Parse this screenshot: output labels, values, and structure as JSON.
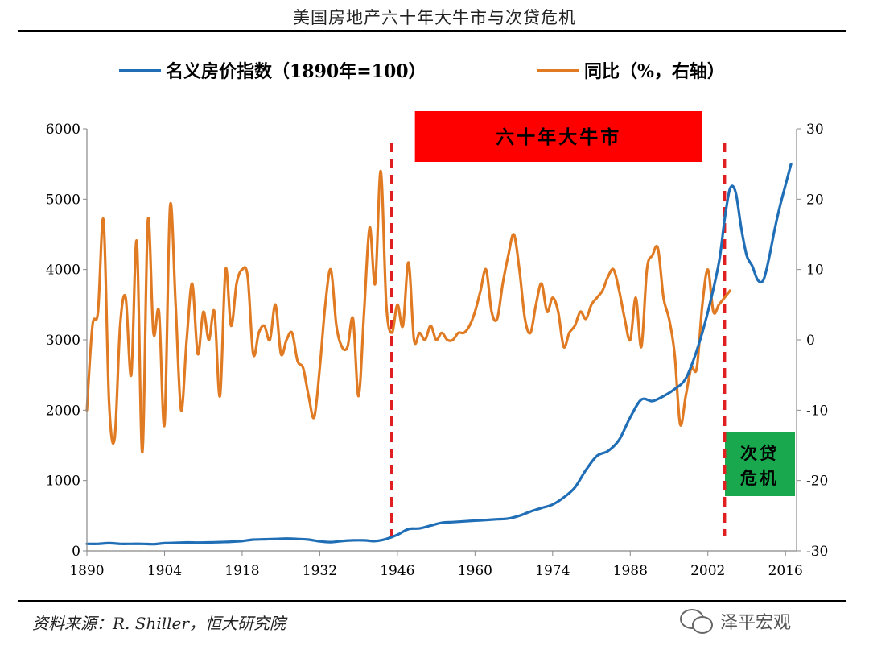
{
  "page": {
    "title": "美国房地产六十年大牛市与次贷危机",
    "source": "资料来源：R. Shiller，恒大研究院",
    "watermark": "泽平宏观"
  },
  "colors": {
    "index_line": "#1f6eb6",
    "yoy_line": "#e07b24",
    "bull_box": "#ff0000",
    "bull_text": "#000000",
    "crisis_box": "#1aa84f",
    "marker_line": "#e02020"
  },
  "chart_data": {
    "type": "line",
    "title": "美国房地产六十年大牛市与次贷危机",
    "x_ticks": [
      1890,
      1904,
      1918,
      1932,
      1946,
      1960,
      1974,
      1988,
      2002,
      2016
    ],
    "x_range": [
      1890,
      2018
    ],
    "y_left": {
      "min": 0,
      "max": 6000,
      "ticks": [
        0,
        1000,
        2000,
        3000,
        4000,
        5000,
        6000
      ]
    },
    "y_right": {
      "min": -30,
      "max": 30,
      "ticks": [
        -30,
        -20,
        -10,
        0,
        10,
        20,
        30
      ]
    },
    "series": [
      {
        "name": "名义房价指数（1890年=100）",
        "axis": "left",
        "points": [
          [
            1890,
            100
          ],
          [
            1892,
            100
          ],
          [
            1894,
            110
          ],
          [
            1896,
            100
          ],
          [
            1898,
            100
          ],
          [
            1900,
            100
          ],
          [
            1902,
            95
          ],
          [
            1904,
            110
          ],
          [
            1906,
            115
          ],
          [
            1908,
            120
          ],
          [
            1910,
            118
          ],
          [
            1912,
            120
          ],
          [
            1914,
            125
          ],
          [
            1916,
            130
          ],
          [
            1918,
            140
          ],
          [
            1920,
            160
          ],
          [
            1922,
            165
          ],
          [
            1924,
            170
          ],
          [
            1926,
            175
          ],
          [
            1928,
            170
          ],
          [
            1930,
            160
          ],
          [
            1932,
            135
          ],
          [
            1934,
            125
          ],
          [
            1936,
            140
          ],
          [
            1938,
            150
          ],
          [
            1940,
            150
          ],
          [
            1942,
            140
          ],
          [
            1944,
            170
          ],
          [
            1946,
            230
          ],
          [
            1948,
            310
          ],
          [
            1950,
            320
          ],
          [
            1952,
            360
          ],
          [
            1954,
            400
          ],
          [
            1956,
            410
          ],
          [
            1958,
            420
          ],
          [
            1960,
            430
          ],
          [
            1962,
            440
          ],
          [
            1964,
            450
          ],
          [
            1966,
            460
          ],
          [
            1968,
            500
          ],
          [
            1970,
            560
          ],
          [
            1972,
            610
          ],
          [
            1974,
            660
          ],
          [
            1976,
            760
          ],
          [
            1978,
            900
          ],
          [
            1980,
            1150
          ],
          [
            1982,
            1350
          ],
          [
            1984,
            1420
          ],
          [
            1986,
            1580
          ],
          [
            1988,
            1900
          ],
          [
            1990,
            2150
          ],
          [
            1992,
            2130
          ],
          [
            1994,
            2200
          ],
          [
            1996,
            2300
          ],
          [
            1998,
            2450
          ],
          [
            2000,
            2850
          ],
          [
            2002,
            3400
          ],
          [
            2004,
            4100
          ],
          [
            2005,
            4700
          ],
          [
            2006,
            5150
          ],
          [
            2007,
            5100
          ],
          [
            2008,
            4600
          ],
          [
            2009,
            4200
          ],
          [
            2010,
            4050
          ],
          [
            2011,
            3850
          ],
          [
            2012,
            3850
          ],
          [
            2013,
            4150
          ],
          [
            2014,
            4550
          ],
          [
            2015,
            4900
          ],
          [
            2016,
            5200
          ],
          [
            2017,
            5500
          ]
        ]
      },
      {
        "name": "同比（%，右轴）",
        "axis": "right",
        "points": [
          [
            1890,
            -10
          ],
          [
            1891,
            2
          ],
          [
            1892,
            4
          ],
          [
            1893,
            17
          ],
          [
            1894,
            -9
          ],
          [
            1895,
            -14
          ],
          [
            1896,
            2
          ],
          [
            1897,
            6
          ],
          [
            1898,
            -5
          ],
          [
            1899,
            14
          ],
          [
            1900,
            -16
          ],
          [
            1901,
            17
          ],
          [
            1902,
            1
          ],
          [
            1903,
            4
          ],
          [
            1904,
            -12
          ],
          [
            1905,
            19
          ],
          [
            1906,
            5
          ],
          [
            1907,
            -10
          ],
          [
            1908,
            0
          ],
          [
            1909,
            8
          ],
          [
            1910,
            -2
          ],
          [
            1911,
            4
          ],
          [
            1912,
            0
          ],
          [
            1913,
            4
          ],
          [
            1914,
            -8
          ],
          [
            1915,
            10
          ],
          [
            1916,
            2
          ],
          [
            1917,
            8
          ],
          [
            1918,
            10
          ],
          [
            1919,
            9
          ],
          [
            1920,
            -2
          ],
          [
            1921,
            1
          ],
          [
            1922,
            2
          ],
          [
            1923,
            0
          ],
          [
            1924,
            5
          ],
          [
            1925,
            -2
          ],
          [
            1926,
            0
          ],
          [
            1927,
            1
          ],
          [
            1928,
            -3
          ],
          [
            1929,
            -4
          ],
          [
            1930,
            -8
          ],
          [
            1931,
            -11
          ],
          [
            1932,
            -4
          ],
          [
            1933,
            5
          ],
          [
            1934,
            10
          ],
          [
            1935,
            2
          ],
          [
            1936,
            -1
          ],
          [
            1937,
            -1
          ],
          [
            1938,
            3
          ],
          [
            1939,
            -8
          ],
          [
            1940,
            4
          ],
          [
            1941,
            16
          ],
          [
            1942,
            8
          ],
          [
            1943,
            24
          ],
          [
            1944,
            5
          ],
          [
            1945,
            1
          ],
          [
            1946,
            5
          ],
          [
            1947,
            2
          ],
          [
            1948,
            11
          ],
          [
            1949,
            0
          ],
          [
            1950,
            1
          ],
          [
            1951,
            0
          ],
          [
            1952,
            2
          ],
          [
            1953,
            0
          ],
          [
            1954,
            1
          ],
          [
            1955,
            0
          ],
          [
            1956,
            0
          ],
          [
            1957,
            1
          ],
          [
            1958,
            1
          ],
          [
            1959,
            2
          ],
          [
            1960,
            4
          ],
          [
            1961,
            7
          ],
          [
            1962,
            10
          ],
          [
            1963,
            4
          ],
          [
            1964,
            3
          ],
          [
            1965,
            8
          ],
          [
            1966,
            12
          ],
          [
            1967,
            15
          ],
          [
            1968,
            10
          ],
          [
            1969,
            3
          ],
          [
            1970,
            1
          ],
          [
            1971,
            5
          ],
          [
            1972,
            8
          ],
          [
            1973,
            4
          ],
          [
            1974,
            6
          ],
          [
            1975,
            4
          ],
          [
            1976,
            -1
          ],
          [
            1977,
            1
          ],
          [
            1978,
            2
          ],
          [
            1979,
            4
          ],
          [
            1980,
            3
          ],
          [
            1981,
            5
          ],
          [
            1982,
            6
          ],
          [
            1983,
            7
          ],
          [
            1984,
            9
          ],
          [
            1985,
            10
          ],
          [
            1986,
            7
          ],
          [
            1987,
            3
          ],
          [
            1988,
            0
          ],
          [
            1989,
            6
          ],
          [
            1990,
            -1
          ],
          [
            1991,
            10
          ],
          [
            1992,
            12
          ],
          [
            1993,
            13
          ],
          [
            1994,
            6
          ],
          [
            1995,
            3
          ],
          [
            1996,
            -2
          ],
          [
            1997,
            -12
          ],
          [
            1998,
            -8
          ],
          [
            1999,
            -4
          ],
          [
            2000,
            -4
          ],
          [
            2001,
            5
          ],
          [
            2002,
            10
          ],
          [
            2003,
            4
          ],
          [
            2004,
            5
          ],
          [
            2005,
            6
          ],
          [
            2006,
            7
          ]
        ]
      }
    ],
    "annotations": [
      {
        "label": "六十年大牛市",
        "kind": "bull_market",
        "from": 1948,
        "to": 2001
      },
      {
        "label": "次贷危机",
        "kind": "crisis",
        "at": 2006
      }
    ],
    "markers": [
      1945,
      2005
    ]
  }
}
